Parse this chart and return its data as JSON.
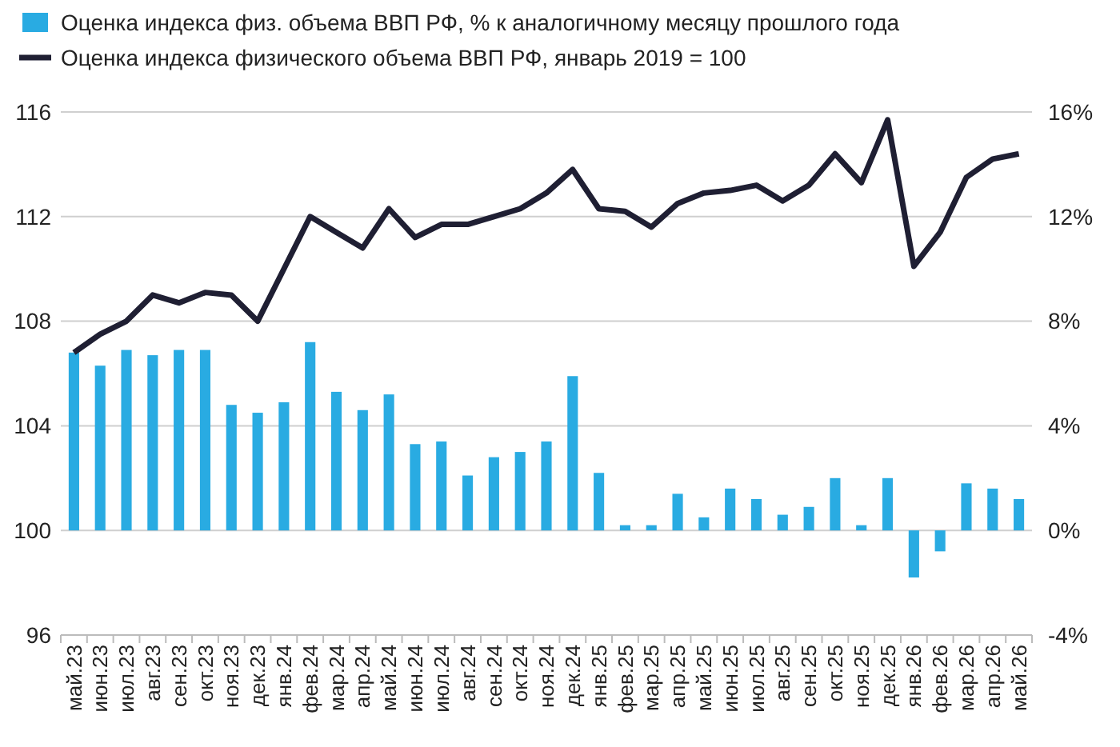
{
  "chart_data": {
    "type": "bar",
    "categories": [
      "май.23",
      "июн.23",
      "июл.23",
      "авг.23",
      "сен.23",
      "окт.23",
      "ноя.23",
      "дек.23",
      "янв.24",
      "фев.24",
      "мар.24",
      "апр.24",
      "май.24",
      "июн.24",
      "июл.24",
      "авг.24",
      "сен.24",
      "окт.24",
      "ноя.24",
      "дек.24",
      "янв.25",
      "фев.25",
      "мар.25",
      "апр.25",
      "май.25",
      "июн.25",
      "июл.25",
      "авг.25",
      "сен.25",
      "окт.25",
      "ноя.25",
      "дек.25",
      "янв.26",
      "фев.26",
      "мар.26",
      "апр.26",
      "май.26"
    ],
    "series": [
      {
        "name": "Оценка индекса физ. объема ВВП РФ, % к аналогичному месяцу прошлого года",
        "axis": "y2",
        "color": "#29abe2",
        "values": [
          6.8,
          6.3,
          6.9,
          6.7,
          6.9,
          6.9,
          4.8,
          4.5,
          4.9,
          7.2,
          5.3,
          4.6,
          5.2,
          3.3,
          3.4,
          2.1,
          2.8,
          3.0,
          3.4,
          5.9,
          2.2,
          0.2,
          0.2,
          1.4,
          0.5,
          1.6,
          1.2,
          0.6,
          0.9,
          2.0,
          0.2,
          2.0,
          -1.8,
          -0.8,
          1.8,
          1.6,
          1.2
        ]
      },
      {
        "name": "Оценка индекса физического объема ВВП РФ, январь 2019 = 100",
        "type": "line",
        "color": "#1f1f33",
        "values": [
          106.8,
          107.5,
          108.0,
          109.0,
          108.7,
          109.1,
          109.0,
          108.0,
          110.0,
          112.0,
          111.4,
          110.8,
          112.3,
          111.2,
          111.7,
          111.7,
          112.0,
          112.3,
          112.9,
          113.8,
          112.3,
          112.2,
          111.6,
          112.5,
          112.9,
          113.0,
          113.2,
          112.6,
          113.2,
          114.4,
          113.3,
          115.7,
          110.1,
          111.4,
          113.5,
          114.2,
          114.4
        ]
      }
    ],
    "ylim": [
      96,
      116
    ],
    "yticks": [
      96,
      100,
      104,
      108,
      112,
      116
    ],
    "y2lim": [
      -4,
      16
    ],
    "y2ticks": [
      {
        "value": -4,
        "label": "-4%"
      },
      {
        "value": 0,
        "label": "0%"
      },
      {
        "value": 4,
        "label": "4%"
      },
      {
        "value": 8,
        "label": "8%"
      },
      {
        "value": 12,
        "label": "12%"
      },
      {
        "value": 16,
        "label": "16%"
      }
    ],
    "grid": "y",
    "legend": "top left",
    "marker": "none",
    "line_style": "solid"
  }
}
